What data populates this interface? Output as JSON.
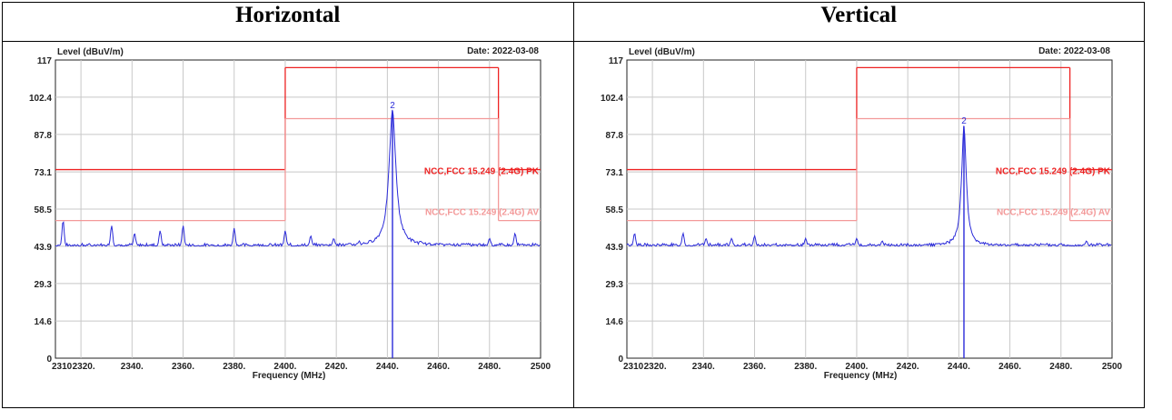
{
  "table": {
    "headers": [
      "Horizontal",
      "Vertical"
    ]
  },
  "chart_data": [
    {
      "type": "line",
      "title": "",
      "date_label": "Date: 2022-03-08",
      "ylabel": "Level (dBuV/m)",
      "xlabel": "Frequency (MHz)",
      "xlim": [
        2310,
        2500
      ],
      "ylim": [
        0,
        117
      ],
      "grid": true,
      "yticks": [
        0,
        14.6,
        29.3,
        43.9,
        58.5,
        73.1,
        87.8,
        102.4,
        117
      ],
      "ytick_labels": [
        "0",
        "14.6",
        "29.3",
        "43.9",
        "58.5",
        "73.1",
        "87.8",
        "102.4",
        "117"
      ],
      "xticks": [
        2310,
        2320,
        2340,
        2360,
        2380,
        2400,
        2420,
        2440,
        2460,
        2480,
        2500
      ],
      "xtick_labels": [
        "2310",
        "2320.",
        "2340.",
        "2360.",
        "2380.",
        "2400.",
        "2420.",
        "2440.",
        "2460.",
        "2480.",
        "2500"
      ],
      "limit_lines": [
        {
          "name": "NCC,FCC 15.249 (2.4G) PK",
          "color": "#ee2222",
          "segments": [
            [
              2310,
              74,
              2400,
              74
            ],
            [
              2400,
              74,
              2400,
              114
            ],
            [
              2400,
              114,
              2483.5,
              114
            ],
            [
              2483.5,
              114,
              2483.5,
              74
            ],
            [
              2483.5,
              74,
              2500,
              74
            ]
          ]
        },
        {
          "name": "NCC,FCC 15.249 (2.4G) AV",
          "color": "#f39999",
          "segments": [
            [
              2310,
              54,
              2400,
              54
            ],
            [
              2400,
              54,
              2400,
              94
            ],
            [
              2400,
              94,
              2483.5,
              94
            ],
            [
              2483.5,
              94,
              2483.5,
              54
            ],
            [
              2483.5,
              54,
              2500,
              54
            ]
          ]
        }
      ],
      "marker": {
        "label": "2",
        "x": 2442,
        "y": 97
      },
      "noise_floor": 44,
      "spurs": [
        [
          2313,
          54
        ],
        [
          2332,
          52
        ],
        [
          2341,
          49
        ],
        [
          2351,
          50
        ],
        [
          2360,
          52
        ],
        [
          2380,
          51
        ],
        [
          2400,
          50
        ],
        [
          2410,
          48
        ],
        [
          2419,
          47
        ],
        [
          2429,
          46
        ],
        [
          2453,
          46
        ],
        [
          2480,
          47
        ],
        [
          2490,
          49
        ],
        [
          2470,
          45
        ]
      ],
      "carrier": {
        "x": 2442,
        "peak": 97,
        "width": 1.6
      },
      "series": [
        {
          "values_x": [
            2310,
            2313,
            2332,
            2341,
            2351,
            2360,
            2380,
            2400,
            2430,
            2438,
            2441,
            2442,
            2443,
            2446,
            2455,
            2490,
            2500
          ],
          "values_y": [
            44,
            54,
            52,
            49,
            50,
            52,
            51,
            50,
            45,
            60,
            85,
            97,
            85,
            58,
            45,
            49,
            44
          ]
        }
      ]
    },
    {
      "type": "line",
      "title": "",
      "date_label": "Date: 2022-03-08",
      "ylabel": "Level (dBuV/m)",
      "xlabel": "Frequency (MHz)",
      "xlim": [
        2310,
        2500
      ],
      "ylim": [
        0,
        117
      ],
      "grid": true,
      "yticks": [
        0,
        14.6,
        29.3,
        43.9,
        58.5,
        73.1,
        87.8,
        102.4,
        117
      ],
      "ytick_labels": [
        "0",
        "14.6",
        "29.3",
        "43.9",
        "58.5",
        "73.1",
        "87.8",
        "102.4",
        "117"
      ],
      "xticks": [
        2310,
        2320,
        2340,
        2360,
        2380,
        2400,
        2420,
        2440,
        2460,
        2480,
        2500
      ],
      "xtick_labels": [
        "2310",
        "2320.",
        "2340.",
        "2360.",
        "2380.",
        "2400.",
        "2420.",
        "2440.",
        "2460.",
        "2480.",
        "2500"
      ],
      "limit_lines": [
        {
          "name": "NCC,FCC 15.249 (2.4G) PK",
          "color": "#ee2222",
          "segments": [
            [
              2310,
              74,
              2400,
              74
            ],
            [
              2400,
              74,
              2400,
              114
            ],
            [
              2400,
              114,
              2483.5,
              114
            ],
            [
              2483.5,
              114,
              2483.5,
              74
            ],
            [
              2483.5,
              74,
              2500,
              74
            ]
          ]
        },
        {
          "name": "NCC,FCC 15.249 (2.4G) AV",
          "color": "#f39999",
          "segments": [
            [
              2310,
              54,
              2400,
              54
            ],
            [
              2400,
              54,
              2400,
              94
            ],
            [
              2400,
              94,
              2483.5,
              94
            ],
            [
              2483.5,
              94,
              2483.5,
              54
            ],
            [
              2483.5,
              54,
              2500,
              54
            ]
          ]
        }
      ],
      "marker": {
        "label": "2",
        "x": 2442,
        "y": 91
      },
      "noise_floor": 44,
      "spurs": [
        [
          2313,
          49
        ],
        [
          2332,
          49
        ],
        [
          2341,
          47
        ],
        [
          2351,
          47
        ],
        [
          2360,
          48
        ],
        [
          2380,
          47
        ],
        [
          2400,
          47
        ],
        [
          2410,
          46
        ],
        [
          2480,
          45
        ],
        [
          2490,
          46
        ],
        [
          2470,
          45
        ]
      ],
      "carrier": {
        "x": 2442,
        "peak": 91,
        "width": 1.1
      },
      "series": [
        {
          "values_x": [
            2310,
            2313,
            2332,
            2341,
            2351,
            2360,
            2380,
            2400,
            2430,
            2439,
            2441,
            2442,
            2443,
            2445,
            2455,
            2490,
            2500
          ],
          "values_y": [
            44,
            49,
            49,
            47,
            47,
            48,
            47,
            47,
            45,
            55,
            80,
            91,
            80,
            55,
            45,
            46,
            44
          ]
        }
      ]
    }
  ]
}
